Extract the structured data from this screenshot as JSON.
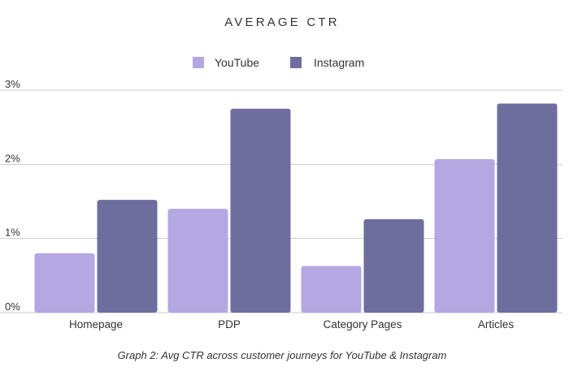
{
  "chart_data": {
    "type": "bar",
    "title": "AVERAGE CTR",
    "caption": "Graph 2:  Avg CTR across customer journeys for YouTube & Instagram",
    "categories": [
      "Homepage",
      "PDP",
      "Category Pages",
      "Articles"
    ],
    "series": [
      {
        "name": "YouTube",
        "color": "#b4a7e2",
        "values": [
          0.8,
          1.4,
          0.63,
          2.07
        ]
      },
      {
        "name": "Instagram",
        "color": "#6e6e9e",
        "values": [
          1.52,
          2.75,
          1.26,
          2.82
        ]
      }
    ],
    "y_ticks": [
      {
        "value": 0,
        "label": "0%"
      },
      {
        "value": 1,
        "label": "1%"
      },
      {
        "value": 2,
        "label": "2%"
      },
      {
        "value": 3,
        "label": "3%"
      }
    ],
    "xlabel": "",
    "ylabel": "",
    "ylim": [
      0,
      3
    ],
    "grid": true,
    "legend_position": "top-center",
    "gridline_color": "#cccccc"
  }
}
